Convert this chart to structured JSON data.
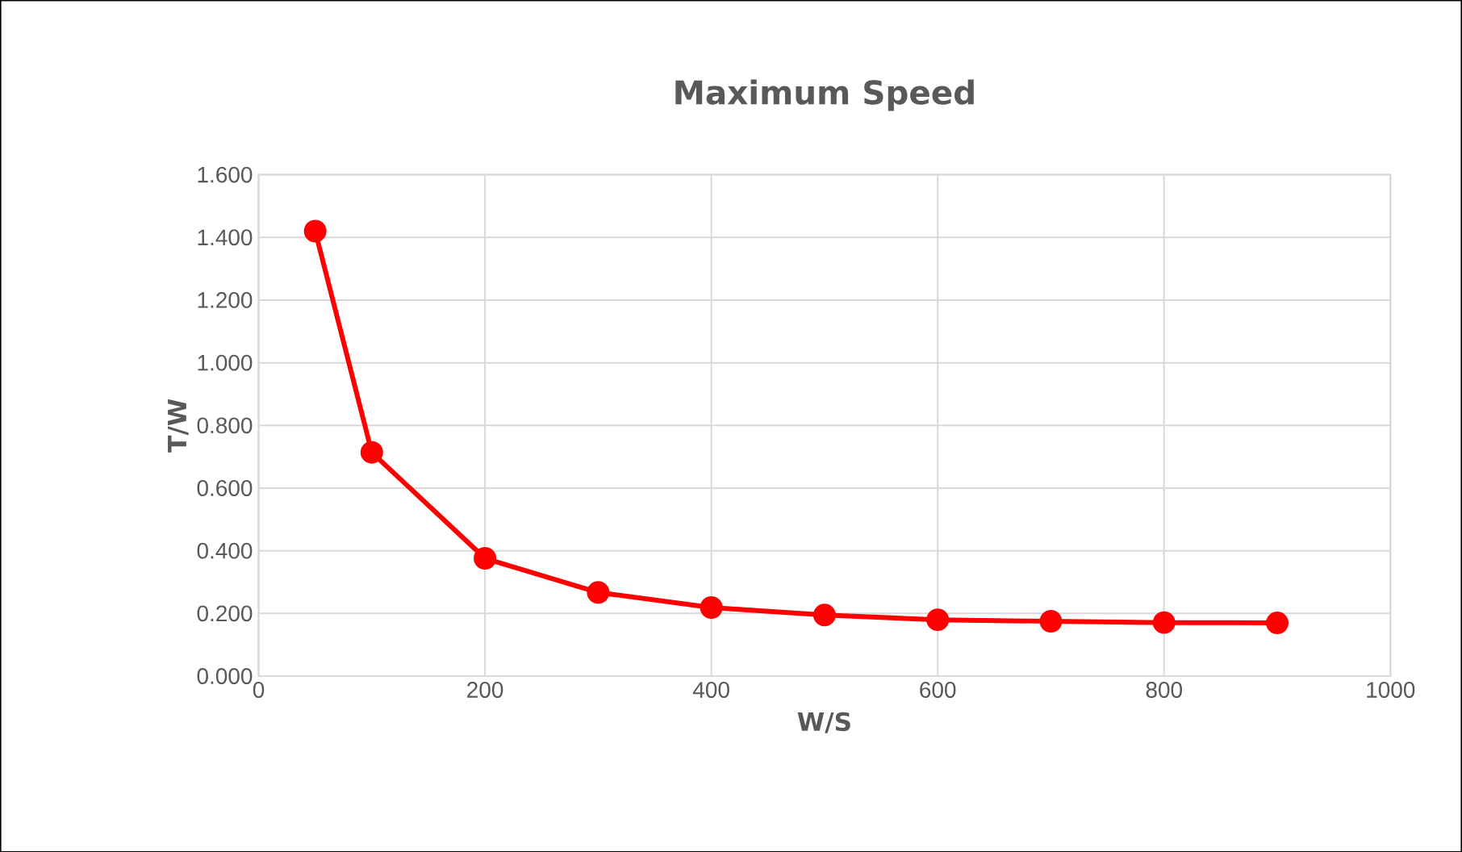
{
  "chart_data": {
    "type": "line",
    "title": "Maximum Speed",
    "xlabel": "W/S",
    "ylabel": "T/W",
    "x": [
      50,
      100,
      200,
      300,
      400,
      500,
      600,
      700,
      800,
      900
    ],
    "series": [
      {
        "color": "#ff0000",
        "values": [
          1.42,
          0.714,
          0.376,
          0.267,
          0.219,
          0.195,
          0.18,
          0.175,
          0.171,
          0.17
        ]
      }
    ],
    "xlim": [
      0,
      1000
    ],
    "xticks": [
      0,
      200,
      400,
      600,
      800,
      1000
    ],
    "ylim": [
      0,
      1.6
    ],
    "yticks": [
      {
        "value": 0,
        "label": "0.000"
      },
      {
        "value": 0.2,
        "label": "0.200"
      },
      {
        "value": 0.4,
        "label": "0.400"
      },
      {
        "value": 0.6,
        "label": "0.600"
      },
      {
        "value": 0.8,
        "label": "0.800"
      },
      {
        "value": 1.0,
        "label": "1.000"
      },
      {
        "value": 1.2,
        "label": "1.200"
      },
      {
        "value": 1.4,
        "label": "1.400"
      },
      {
        "value": 1.6,
        "label": "1.600"
      }
    ],
    "grid": true,
    "marker": "circle",
    "line_style": "solid"
  }
}
